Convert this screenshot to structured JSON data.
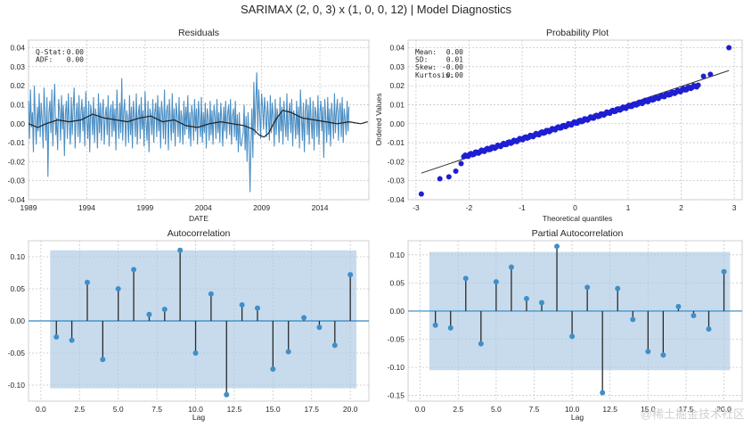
{
  "figure": {
    "title": "SARIMAX (2, 0, 3) x (1, 0, 0, 12) | Model Diagnostics",
    "watermark": "@稀土掘金技术社区"
  },
  "colors": {
    "residual_line": "#4c8fc4",
    "rolling_mean": "#202020",
    "prob_points": "#1e1ed2",
    "prob_line": "#303030",
    "conf_band": "#a9c8e4",
    "stem_line": "#2a2a2a",
    "stem_marker": "#3f8fc8",
    "zero_line": "#2e86c1"
  },
  "chart_data": [
    {
      "type": "line",
      "title": "Residuals",
      "xlabel": "DATE",
      "ylabel": "",
      "xlim": [
        1989.0,
        2018.2
      ],
      "ylim": [
        -0.04,
        0.044
      ],
      "xticks": [
        1989,
        1994,
        1999,
        2004,
        2009,
        2014
      ],
      "yticks": [
        -0.04,
        -0.03,
        -0.02,
        -0.01,
        0.0,
        0.01,
        0.02,
        0.03,
        0.04
      ],
      "grid": true,
      "stats": [
        {
          "label": "Q-Stat:",
          "value": "0.00"
        },
        {
          "label": "ADF:",
          "value": "0.00"
        }
      ],
      "series": [
        {
          "name": "",
          "kind": "monthly residuals",
          "x_start": 1989.0,
          "x_step": 0.08333,
          "values": [
            0.012,
            -0.008,
            0.018,
            -0.002,
            0.006,
            -0.015,
            0.02,
            0.003,
            -0.011,
            0.009,
            -0.004,
            0.016,
            -0.007,
            0.011,
            0.002,
            -0.013,
            0.019,
            0.004,
            -0.009,
            0.014,
            -0.028,
            0.006,
            0.012,
            -0.005,
            0.018,
            -0.012,
            0.009,
            0.021,
            -0.006,
            0.003,
            -0.014,
            0.013,
            0.007,
            -0.009,
            0.015,
            -0.003,
            0.01,
            -0.017,
            0.005,
            0.012,
            -0.008,
            0.016,
            0.001,
            -0.011,
            0.014,
            -0.006,
            0.008,
            0.019,
            -0.013,
            0.004,
            0.011,
            -0.007,
            0.015,
            -0.01,
            0.006,
            0.013,
            -0.004,
            0.009,
            -0.012,
            0.017,
            0.002,
            -0.008,
            0.012,
            -0.015,
            0.01,
            0.005,
            -0.006,
            0.014,
            -0.01,
            0.008,
            0.003,
            -0.013,
            0.016,
            -0.005,
            0.011,
            -0.009,
            0.007,
            0.013,
            -0.011,
            0.004,
            0.009,
            -0.006,
            0.015,
            -0.012,
            0.006,
            0.01,
            -0.007,
            0.012,
            -0.004,
            0.008,
            -0.014,
            0.018,
            0.002,
            -0.008,
            0.011,
            -0.005,
            0.024,
            -0.009,
            0.006,
            0.013,
            -0.012,
            0.007,
            0.003,
            -0.01,
            0.015,
            -0.006,
            0.009,
            -0.013,
            0.012,
            0.004,
            -0.007,
            0.016,
            -0.011,
            0.005,
            0.01,
            -0.008,
            0.014,
            -0.003,
            0.007,
            -0.012,
            0.017,
            0.001,
            -0.009,
            0.012,
            -0.015,
            0.008,
            0.004,
            -0.006,
            0.013,
            -0.01,
            0.006,
            0.011,
            -0.007,
            0.015,
            -0.004,
            0.009,
            -0.013,
            0.012,
            0.005,
            -0.008,
            0.018,
            -0.011,
            0.006,
            0.01,
            -0.014,
            0.013,
            0.002,
            -0.009,
            0.016,
            -0.005,
            0.008,
            -0.012,
            0.011,
            0.004,
            -0.007,
            0.014,
            -0.01,
            0.007,
            0.003,
            -0.011,
            0.012,
            -0.006,
            0.009,
            -0.003,
            0.015,
            -0.008,
            0.006,
            -0.012,
            0.01,
            0.005,
            -0.009,
            0.013,
            -0.004,
            0.008,
            -0.011,
            0.012,
            0.002,
            -0.007,
            0.014,
            -0.01,
            0.006,
            -0.005,
            0.011,
            -0.013,
            0.008,
            0.003,
            -0.009,
            0.012,
            -0.006,
            0.007,
            -0.011,
            0.01,
            0.004,
            -0.008,
            0.013,
            -0.005,
            0.006,
            -0.01,
            0.011,
            0.002,
            -0.012,
            0.009,
            -0.004,
            0.012,
            -0.008,
            0.005,
            0.01,
            -0.006,
            0.013,
            -0.011,
            0.004,
            0.008,
            -0.007,
            0.012,
            -0.009,
            0.005,
            -0.015,
            0.006,
            -0.01,
            -0.012,
            -0.008,
            -0.005,
            0.01,
            -0.014,
            0.004,
            -0.02,
            0.006,
            -0.009,
            -0.036,
            -0.012,
            0.008,
            -0.018,
            0.022,
            -0.006,
            0.012,
            0.027,
            -0.004,
            0.018,
            0.005,
            -0.008,
            0.016,
            0.009,
            -0.003,
            0.014,
            0.006,
            -0.007,
            0.012,
            0.003,
            -0.009,
            0.015,
            -0.005,
            0.011,
            0.004,
            -0.012,
            0.013,
            -0.006,
            0.008,
            0.002,
            -0.01,
            0.014,
            -0.004,
            0.009,
            -0.011,
            0.012,
            0.001,
            -0.007,
            0.016,
            -0.009,
            0.006,
            0.011,
            -0.005,
            0.013,
            -0.012,
            0.007,
            0.003,
            -0.008,
            0.012,
            -0.006,
            0.009,
            -0.013,
            0.018,
            0.004,
            -0.009,
            0.011,
            -0.015,
            0.007,
            0.013,
            -0.006,
            0.01,
            -0.011,
            0.014,
            0.002,
            -0.008,
            0.012,
            -0.014,
            0.009,
            0.005,
            -0.007,
            0.015,
            -0.011,
            0.006,
            0.012,
            -0.004,
            0.009,
            -0.018,
            0.013,
            0.003,
            -0.01,
            0.014,
            -0.006,
            0.008,
            -0.012,
            0.011,
            0.004,
            -0.008,
            0.016,
            -0.005,
            0.007,
            0.013,
            -0.009,
            0.006,
            0.011,
            -0.007,
            0.014,
            -0.01,
            0.008,
            0.002,
            -0.006,
            0.012,
            -0.004,
            0.009
          ]
        },
        {
          "name": "",
          "kind": "rolling mean",
          "x": [
            1989.0,
            1989.8,
            1990.5,
            1991.5,
            1992.5,
            1993.5,
            1994.5,
            1995.5,
            1996.5,
            1997.5,
            1998.5,
            1999.5,
            2000.5,
            2001.5,
            2002.5,
            2003.5,
            2004.5,
            2005.5,
            2006.5,
            2007.5,
            2008.3,
            2008.8,
            2009.2,
            2009.6,
            2010.2,
            2010.8,
            2011.5,
            2012.5,
            2013.5,
            2014.5,
            2015.5,
            2016.5,
            2017.5,
            2018.1
          ],
          "values": [
            0.0,
            -0.002,
            0.0,
            0.002,
            0.001,
            0.002,
            0.005,
            0.003,
            0.002,
            0.001,
            0.003,
            0.004,
            0.001,
            0.002,
            -0.001,
            -0.002,
            0.0,
            0.001,
            0.0,
            -0.001,
            -0.003,
            -0.006,
            -0.007,
            -0.005,
            0.002,
            0.007,
            0.006,
            0.003,
            0.002,
            0.001,
            0.0,
            0.001,
            0.0,
            0.001
          ]
        }
      ]
    },
    {
      "type": "scatter",
      "title": "Probability Plot",
      "xlabel": "Theoretical quantiles",
      "ylabel": "Ordered Values",
      "xlim": [
        -3.15,
        3.15
      ],
      "ylim": [
        -0.04,
        0.044
      ],
      "xticks": [
        -3,
        -2,
        -1,
        0,
        1,
        2,
        3
      ],
      "yticks": [
        -0.04,
        -0.03,
        -0.02,
        -0.01,
        0.0,
        0.01,
        0.02,
        0.03,
        0.04
      ],
      "grid": true,
      "stats": [
        {
          "label": "Mean:",
          "value": "0.00"
        },
        {
          "label": "SD:",
          "value": "0.01"
        },
        {
          "label": "Skew:",
          "value": "-0.00"
        },
        {
          "label": "Kurtosis:",
          "value": "0.00"
        }
      ],
      "fit_line": {
        "x": [
          -2.9,
          2.9
        ],
        "y": [
          -0.026,
          0.028
        ]
      },
      "outliers": [
        [
          -2.9,
          -0.037
        ],
        [
          -2.55,
          -0.029
        ],
        [
          -2.38,
          -0.028
        ],
        [
          -2.25,
          -0.025
        ],
        [
          -2.15,
          -0.021
        ],
        [
          2.42,
          0.025
        ],
        [
          2.55,
          0.026
        ],
        [
          2.9,
          0.04
        ]
      ],
      "core": {
        "x_from": -2.1,
        "x_to": 2.32,
        "slope": 0.0085,
        "intercept": 0.0005,
        "count": 160
      }
    },
    {
      "type": "stem",
      "title": "Autocorrelation",
      "xlabel": "Lag",
      "ylabel": "",
      "xlim": [
        -0.8,
        21.2
      ],
      "ylim": [
        -0.125,
        0.125
      ],
      "xticks": [
        0.0,
        2.5,
        5.0,
        7.5,
        10.0,
        12.5,
        15.0,
        17.5,
        20.0
      ],
      "xtick_labels": [
        "0.0",
        "2.5",
        "5.0",
        "7.5",
        "10.0",
        "12.5",
        "15.0",
        "17.5",
        "20.0"
      ],
      "yticks": [
        -0.1,
        -0.05,
        0.0,
        0.05,
        0.1
      ],
      "ytick_labels": [
        "-0.10",
        "-0.05",
        "0.00",
        "0.05",
        "0.10"
      ],
      "grid": true,
      "confidence_band": [
        -0.105,
        0.11
      ],
      "lags": [
        1,
        2,
        3,
        4,
        5,
        6,
        7,
        8,
        9,
        10,
        11,
        12,
        13,
        14,
        15,
        16,
        17,
        18,
        19,
        20
      ],
      "values": [
        -0.025,
        -0.03,
        0.06,
        -0.06,
        0.05,
        0.08,
        0.01,
        0.018,
        0.11,
        -0.05,
        0.042,
        -0.115,
        0.025,
        0.02,
        -0.075,
        -0.048,
        0.005,
        -0.01,
        -0.038,
        0.072
      ]
    },
    {
      "type": "stem",
      "title": "Partial Autocorrelation",
      "xlabel": "Lag",
      "ylabel": "",
      "xlim": [
        -0.8,
        21.2
      ],
      "ylim": [
        -0.16,
        0.125
      ],
      "xticks": [
        0.0,
        2.5,
        5.0,
        7.5,
        10.0,
        12.5,
        15.0,
        17.5,
        20.0
      ],
      "xtick_labels": [
        "0.0",
        "2.5",
        "5.0",
        "7.5",
        "10.0",
        "12.5",
        "15.0",
        "17.5",
        "20.0"
      ],
      "yticks": [
        -0.15,
        -0.1,
        -0.05,
        0.0,
        0.05,
        0.1
      ],
      "ytick_labels": [
        "-0.15",
        "-0.10",
        "-0.05",
        "0.00",
        "0.05",
        "0.10"
      ],
      "grid": true,
      "confidence_band": [
        -0.105,
        0.105
      ],
      "lags": [
        1,
        2,
        3,
        4,
        5,
        6,
        7,
        8,
        9,
        10,
        11,
        12,
        13,
        14,
        15,
        16,
        17,
        18,
        19,
        20
      ],
      "values": [
        -0.025,
        -0.03,
        0.058,
        -0.058,
        0.052,
        0.078,
        0.022,
        0.015,
        0.115,
        -0.045,
        0.042,
        -0.145,
        0.04,
        -0.015,
        -0.072,
        -0.078,
        0.008,
        -0.008,
        -0.032,
        0.07
      ]
    }
  ]
}
